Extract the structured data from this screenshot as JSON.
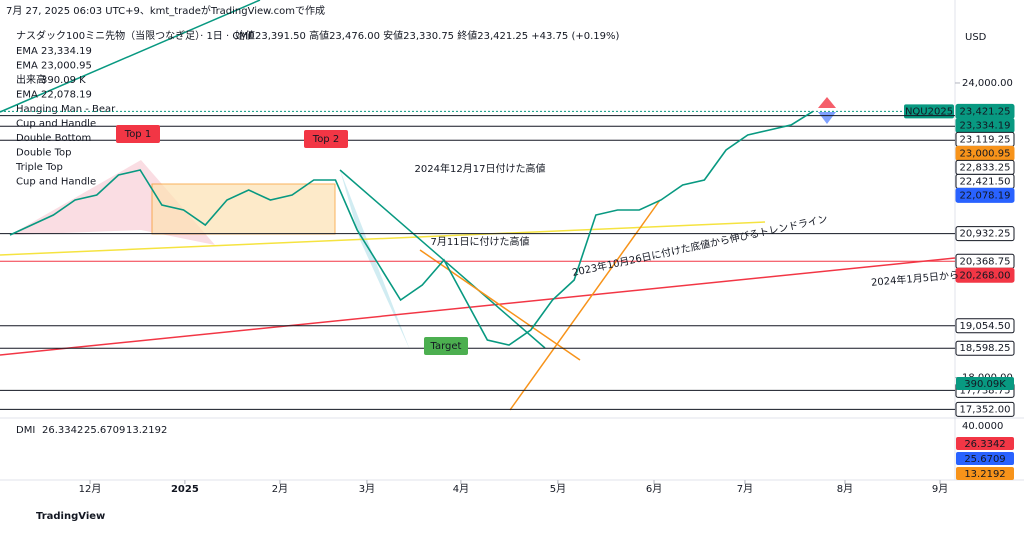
{
  "header": {
    "created": "7月 27, 2025 06:03 UTC+9、kmt_tradeがTradingView.comで作成",
    "currency": "USD",
    "footer": "TradingView"
  },
  "chart_data": {
    "type": "line",
    "title": "ナスダック100ミニ先物（当限つなぎ足）· 1日 · CME",
    "ohlc": "始値23,391.50  高値23,476.00  安値23,330.75  終値23,421.25  +43.75 (+0.19%)",
    "legend": [
      [
        "EMA",
        "23,334.19",
        "#089981"
      ],
      [
        "EMA",
        "23,000.95",
        "#f7931a"
      ],
      [
        "出来高",
        "390.09 K",
        "#089981"
      ],
      [
        "EMA",
        "22,078.19",
        "#2962ff"
      ]
    ],
    "patterns": [
      "Hanging Man - Bear",
      "Cup and Handle",
      "Double Bottom",
      "Double Top",
      "Triple Top",
      "Cup and Handle"
    ],
    "symbol_label": "NQU2025",
    "x": [
      0,
      1,
      2,
      3,
      4,
      5,
      6,
      7,
      8,
      9,
      10,
      11,
      12,
      13,
      14,
      15,
      16,
      17,
      18,
      19,
      20,
      21,
      22,
      23,
      24,
      25,
      26,
      27,
      28,
      29,
      30,
      31,
      32,
      33,
      34,
      35,
      36,
      37
    ],
    "series": [
      {
        "name": "ナスダック100ミニ先物",
        "color": "#089981",
        "values": [
          20904,
          21107,
          21311,
          21617,
          21719,
          22126,
          22228,
          21515,
          21413,
          21107,
          21617,
          21820,
          21617,
          21719,
          22024,
          22024,
          21006,
          20293,
          19580,
          19885,
          20394,
          19580,
          18765,
          18663,
          18969,
          19580,
          19987,
          21311,
          21413,
          21413,
          21617,
          21923,
          22024,
          22635,
          22941,
          23043,
          23145,
          23421.25
        ]
      }
    ],
    "xlim": [
      -0.46,
      43.55
    ],
    "xticks": [
      {
        "value": 3.69,
        "label": "12月"
      },
      {
        "value": 8.06,
        "label": "2025"
      },
      {
        "value": 12.44,
        "label": "2月"
      },
      {
        "value": 16.45,
        "label": "3月"
      },
      {
        "value": 20.78,
        "label": "4月"
      },
      {
        "value": 25.25,
        "label": "5月"
      },
      {
        "value": 29.68,
        "label": "6月"
      },
      {
        "value": 33.87,
        "label": "7月"
      },
      {
        "value": 38.48,
        "label": "8月"
      },
      {
        "value": 42.86,
        "label": "9月"
      }
    ],
    "ylim": [
      17238,
      25690
    ],
    "yticks": [
      {
        "value": 24000,
        "label": "24,000.00"
      },
      {
        "value": 18000,
        "label": "18,000.00"
      }
    ],
    "levels": [
      {
        "value": 23421.25,
        "label": "23,421.25",
        "bg": "#089981",
        "fg": "#ffffff",
        "line": "#089981"
      },
      {
        "value": 23334.19,
        "label": "23,334.19",
        "bg": "#089981",
        "fg": "#ffffff",
        "line": "#131722"
      },
      {
        "value": 23119.25,
        "label": "23,119.25",
        "bg": "#ffffff",
        "fg": "#131722",
        "line": "#131722"
      },
      {
        "value": 23000.95,
        "label": "23,000.95",
        "bg": "#f7931a",
        "fg": "#ffffff",
        "line": null
      },
      {
        "value": 22833.25,
        "label": "22,833.25",
        "bg": "#ffffff",
        "fg": "#131722",
        "line": "#131722"
      },
      {
        "value": 22421.5,
        "label": "22,421.50",
        "bg": "#ffffff",
        "fg": "#131722",
        "line": null
      },
      {
        "value": 22078.19,
        "label": "22,078.19",
        "bg": "#2962ff",
        "fg": "#ffffff",
        "line": null
      },
      {
        "value": 20932.25,
        "label": "20,932.25",
        "bg": "#ffffff",
        "fg": "#131722",
        "line": "#131722"
      },
      {
        "value": 20368.75,
        "label": "20,368.75",
        "bg": "#ffffff",
        "fg": "#131722",
        "line": "#f23645"
      },
      {
        "value": 20268,
        "label": "20,268.00",
        "bg": "#f23645",
        "fg": "#ffffff",
        "line": null
      },
      {
        "value": 19054.5,
        "label": "19,054.50",
        "bg": "#ffffff",
        "fg": "#131722",
        "line": "#131722"
      },
      {
        "value": 18598.25,
        "label": "18,598.25",
        "bg": "#ffffff",
        "fg": "#131722",
        "line": "#131722"
      },
      {
        "value": 17738.75,
        "label": "17,738.75",
        "bg": "#ffffff",
        "fg": "#131722",
        "line": "#131722"
      },
      {
        "value": 17352,
        "label": "17,352.00",
        "bg": "#ffffff",
        "fg": "#131722",
        "line": "#131722"
      }
    ],
    "volume_label": "390.09K",
    "annotations": [
      "Top 1",
      "Top 2",
      "Target",
      "2024年12月17日付けた高値",
      "7月11日に付けた高値",
      "2023年10月26日に付けた底値から伸びるトレンドライン",
      "2024年1月5日から"
    ],
    "dmi": {
      "name": "DMI",
      "values": [
        [
          "26.3342",
          "#f23645"
        ],
        [
          "25.6709",
          "#2962ff"
        ],
        [
          "13.2192",
          "#f7931a"
        ]
      ],
      "axis": "40.0000"
    }
  }
}
